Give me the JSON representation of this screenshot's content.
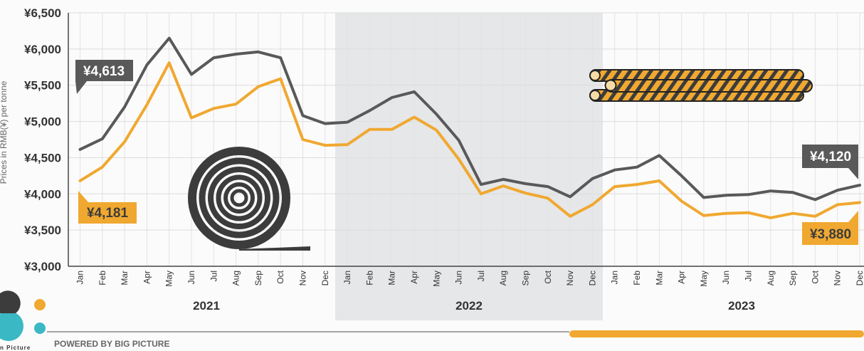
{
  "chart_data": {
    "type": "line",
    "ylabel": "Prices in RMB(¥) per tonne",
    "ylim": [
      3000,
      6500
    ],
    "yticks": [
      "¥3,000",
      "¥3,500",
      "¥4,000",
      "¥4,500",
      "¥5,000",
      "¥5,500",
      "¥6,000",
      "¥6,500"
    ],
    "categories": [
      "Jan",
      "Feb",
      "Mar",
      "Apr",
      "May",
      "Jun",
      "Jul",
      "Aug",
      "Sep",
      "Oct",
      "Nov",
      "Dec",
      "Jan",
      "Feb",
      "Mar",
      "Apr",
      "May",
      "Jun",
      "Jul",
      "Aug",
      "Sep",
      "Oct",
      "Nov",
      "Dec",
      "Jan",
      "Feb",
      "Mar",
      "Apr",
      "May",
      "Jun",
      "Jul",
      "Aug",
      "Sep",
      "Oct",
      "Nov",
      "Dec"
    ],
    "years": [
      "2021",
      "2022",
      "2023"
    ],
    "highlight_year": "2022",
    "series": [
      {
        "color": "#595959",
        "values": [
          4613,
          4760,
          5200,
          5780,
          6150,
          5650,
          5880,
          5930,
          5960,
          5880,
          5080,
          4970,
          4990,
          5150,
          5330,
          5410,
          5100,
          4740,
          4130,
          4200,
          4140,
          4100,
          3960,
          4210,
          4330,
          4370,
          4530,
          4250,
          3950,
          3980,
          3990,
          4040,
          4020,
          3920,
          4050,
          4120
        ]
      },
      {
        "color": "#f0a830",
        "values": [
          4181,
          4370,
          4720,
          5230,
          5810,
          5050,
          5180,
          5240,
          5480,
          5590,
          4750,
          4670,
          4680,
          4890,
          4890,
          5060,
          4880,
          4480,
          4000,
          4110,
          4010,
          3940,
          3690,
          3850,
          4100,
          4130,
          4180,
          3900,
          3700,
          3730,
          3740,
          3670,
          3730,
          3690,
          3850,
          3880
        ]
      }
    ],
    "callouts": {
      "grey_start": "¥4,613",
      "grey_end": "¥4,120",
      "orange_start": "¥4,181",
      "orange_end": "¥3,880"
    }
  },
  "footer": {
    "powered_by": "POWERED BY BIG PICTURE",
    "logo_text": "n Picture"
  },
  "colors": {
    "grey": "#595959",
    "orange": "#f0a830",
    "shade": "#e6e7e9",
    "teal": "#3ab8c4",
    "dark": "#3c3c3c"
  }
}
